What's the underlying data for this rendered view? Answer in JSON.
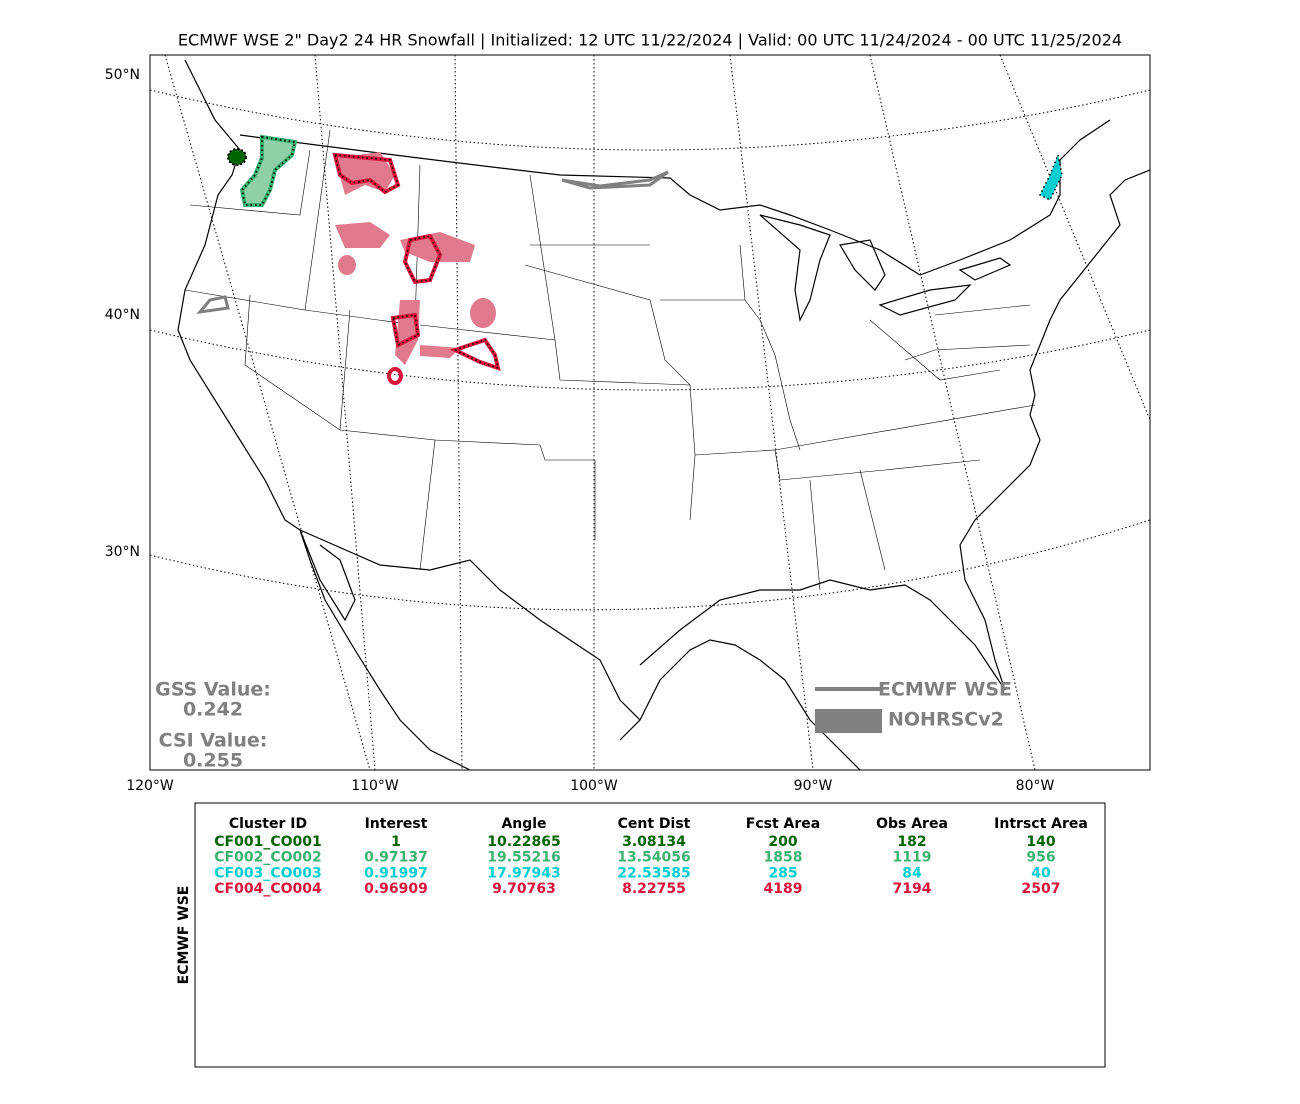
{
  "title": "ECMWF WSE 2\" Day2 24 HR Snowfall | Initialized: 12 UTC 11/22/2024 | Valid: 00 UTC 11/24/2024 - 00 UTC 11/25/2024",
  "map": {
    "lat_labels": [
      "50°N",
      "40°N",
      "30°N"
    ],
    "lon_labels": [
      "120°W",
      "110°W",
      "100°W",
      "90°W",
      "80°W"
    ],
    "scores": {
      "gss_label": "GSS Value:",
      "gss": "0.242",
      "csi_label": "CSI Value:",
      "csi": "0.255"
    },
    "legend": [
      {
        "label": "ECMWF WSE",
        "color": "#808080"
      },
      {
        "label": "NOHRSCv2",
        "color": "#808080"
      }
    ]
  },
  "table": {
    "side_label": "ECMWF WSE",
    "header": [
      "Cluster ID",
      "Interest",
      "Angle",
      "Cent Dist",
      "Fcst Area",
      "Obs Area",
      "Intrsct Area"
    ],
    "rows": [
      {
        "color": "#006400",
        "cells": [
          "CF001_CO001",
          "1",
          "10.22865",
          "3.08134",
          "200",
          "182",
          "140"
        ]
      },
      {
        "color": "#3cb371",
        "cells": [
          "CF002_CO002",
          "0.97137",
          "19.55216",
          "13.54056",
          "1858",
          "1119",
          "956"
        ]
      },
      {
        "color": "#00ced1",
        "cells": [
          "CF003_CO003",
          "0.91997",
          "17.97943",
          "22.53585",
          "285",
          "84",
          "40"
        ]
      },
      {
        "color": "#dc143c",
        "cells": [
          "CF004_CO004",
          "0.96909",
          "9.70763",
          "8.22755",
          "4189",
          "7194",
          "2507"
        ]
      }
    ]
  }
}
